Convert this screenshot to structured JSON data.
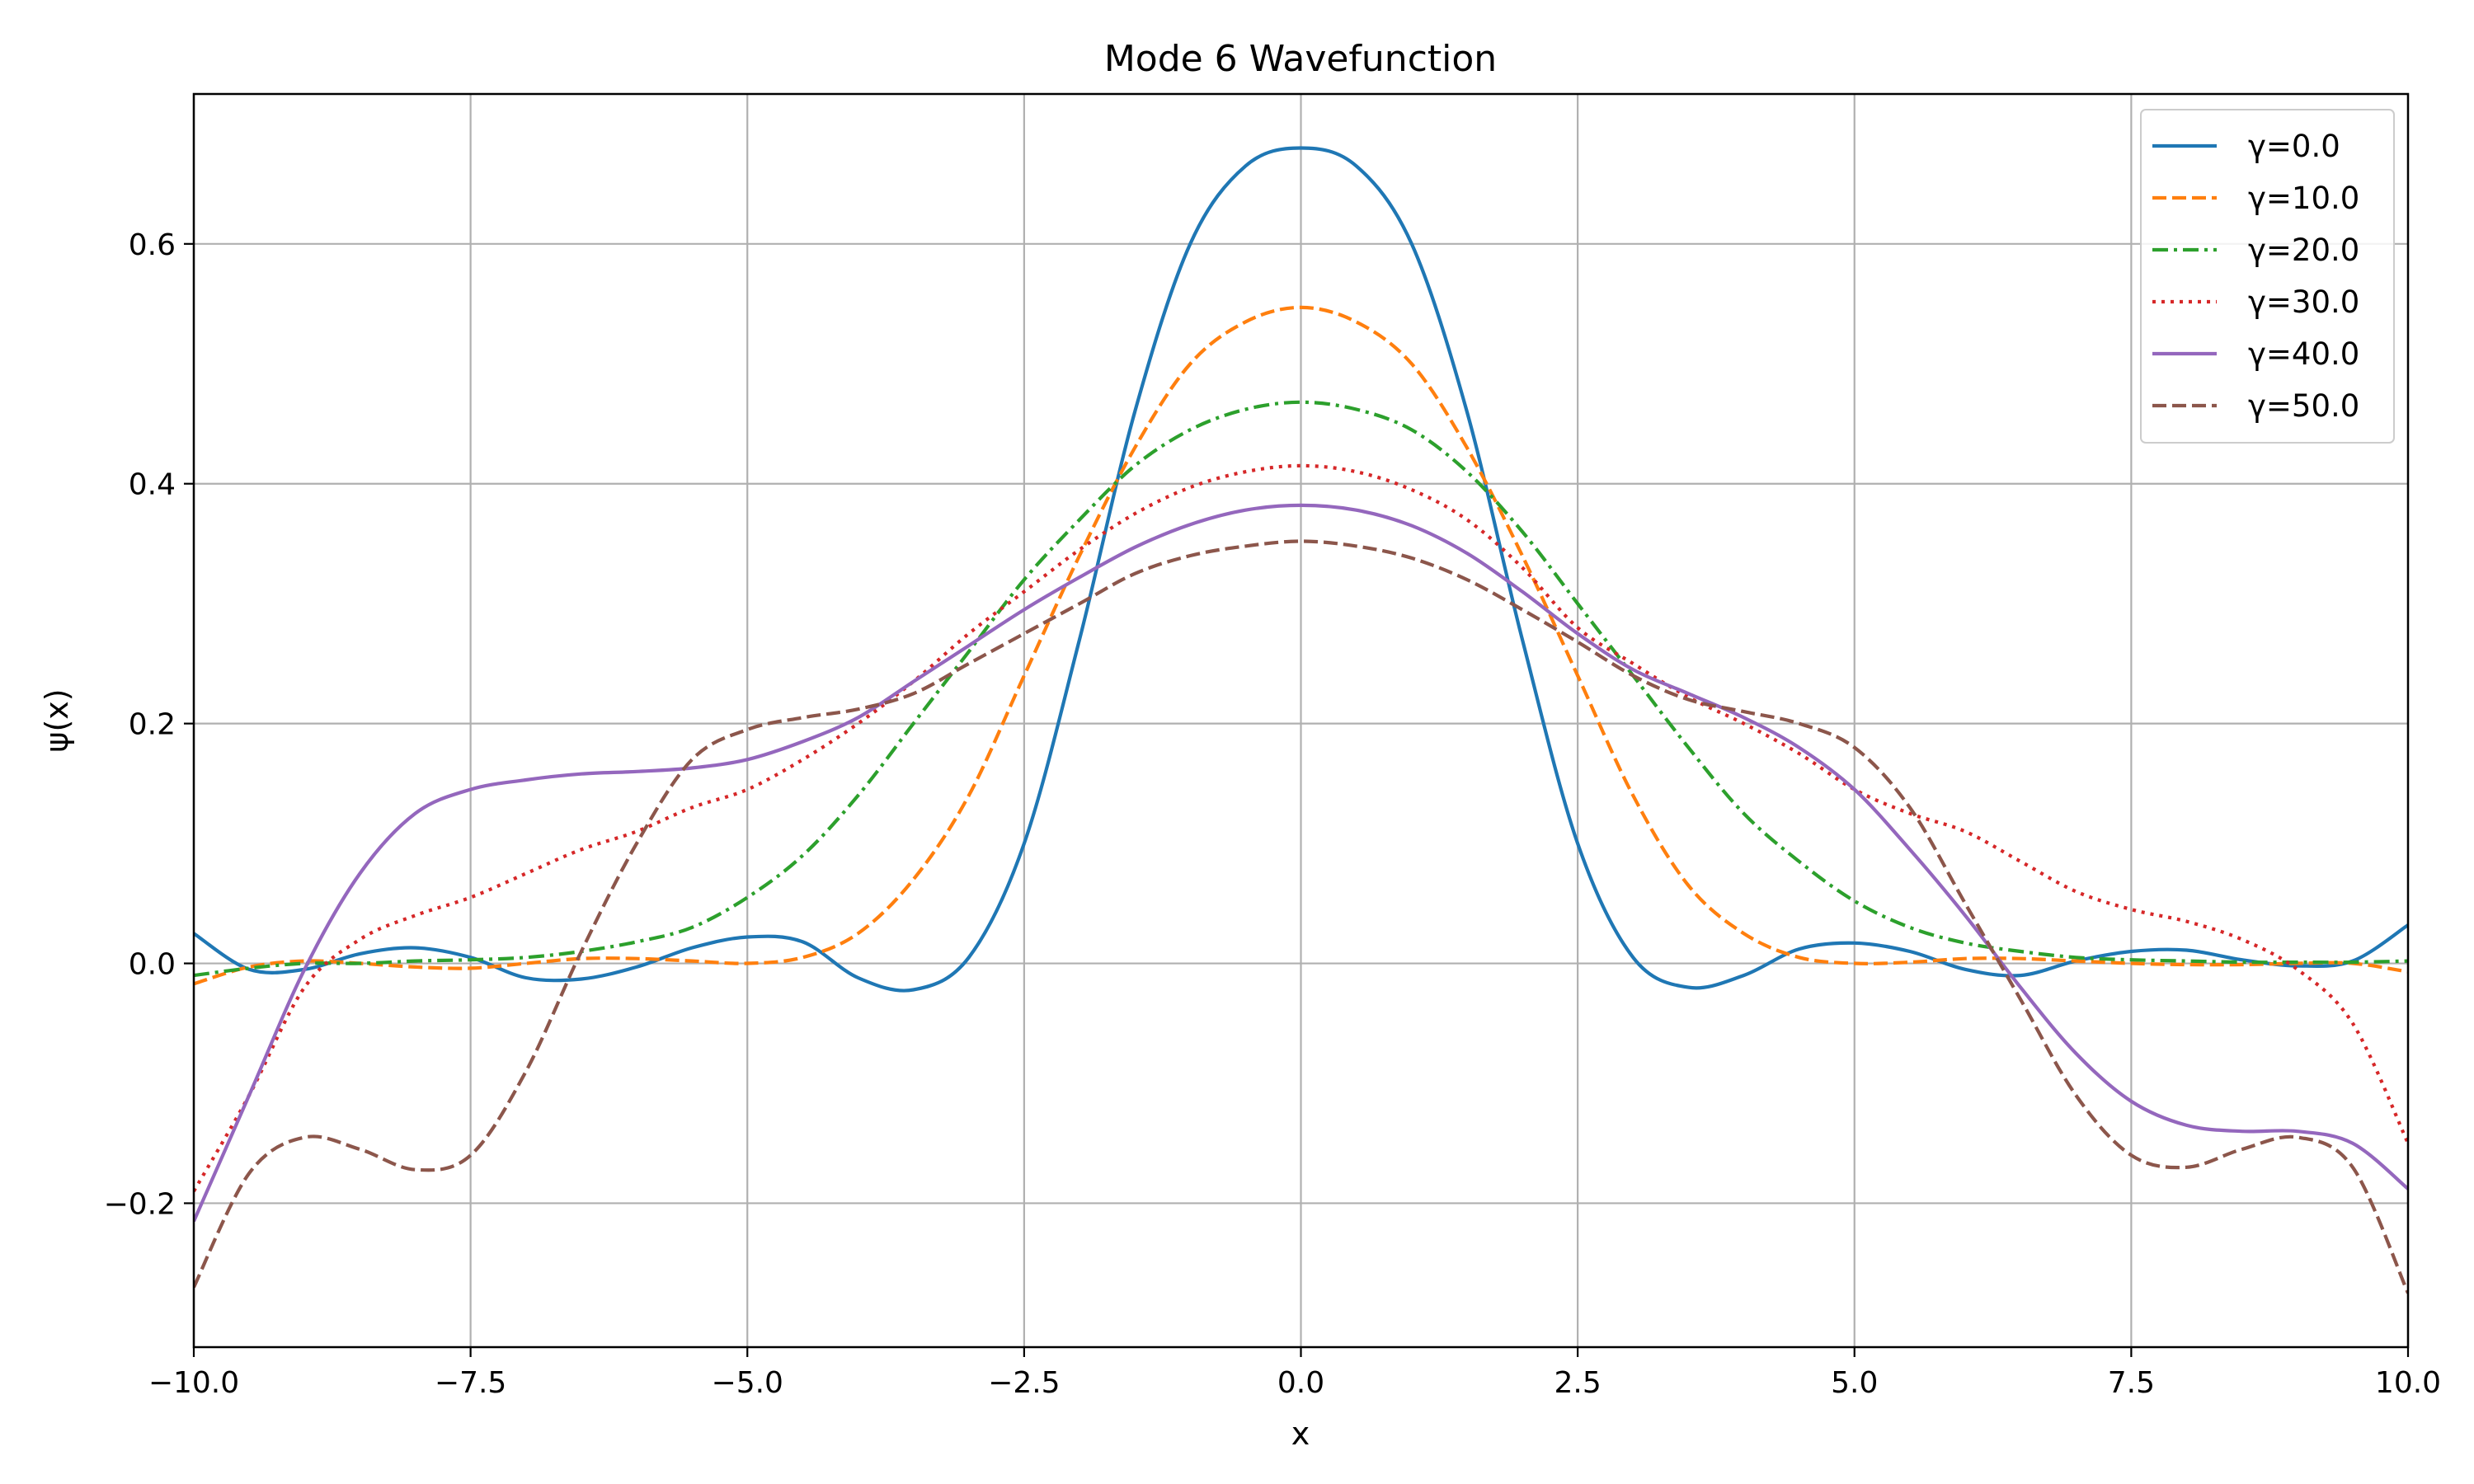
{
  "chart_data": {
    "type": "line",
    "title": "Mode 6 Wavefunction",
    "xlabel": "x",
    "ylabel": "ψ(x)",
    "xlim": [
      -10.0,
      10.0
    ],
    "ylim": [
      -0.32,
      0.725
    ],
    "grid": true,
    "legend_position": "top-right",
    "x_ticks": [
      -10.0,
      -7.5,
      -5.0,
      -2.5,
      0.0,
      2.5,
      5.0,
      7.5,
      10.0
    ],
    "x_tick_labels": [
      "−10.0",
      "−7.5",
      "−5.0",
      "−2.5",
      "0.0",
      "2.5",
      "5.0",
      "7.5",
      "10.0"
    ],
    "y_ticks": [
      -0.2,
      0.0,
      0.2,
      0.4,
      0.6
    ],
    "y_tick_labels": [
      "−0.2",
      "0.0",
      "0.2",
      "0.4",
      "0.6"
    ],
    "x": [
      -10.0,
      -9.5,
      -9.0,
      -8.5,
      -8.0,
      -7.5,
      -7.0,
      -6.5,
      -6.0,
      -5.5,
      -5.0,
      -4.5,
      -4.0,
      -3.5,
      -3.0,
      -2.5,
      -2.0,
      -1.5,
      -1.0,
      -0.5,
      0.0,
      0.5,
      1.0,
      1.5,
      2.0,
      2.5,
      3.0,
      3.5,
      4.0,
      4.5,
      5.0,
      5.5,
      6.0,
      6.5,
      7.0,
      7.5,
      8.0,
      8.5,
      9.0,
      9.5,
      10.0
    ],
    "series": [
      {
        "name": "γ=0.0",
        "color": "#1f77b4",
        "dash": "solid",
        "values": [
          0.025,
          -0.005,
          -0.005,
          0.008,
          0.013,
          0.005,
          -0.012,
          -0.013,
          -0.003,
          0.013,
          0.022,
          0.018,
          -0.012,
          -0.022,
          0.005,
          0.1,
          0.27,
          0.46,
          0.6,
          0.665,
          0.68,
          0.665,
          0.6,
          0.46,
          0.27,
          0.1,
          0.005,
          -0.02,
          -0.01,
          0.012,
          0.017,
          0.01,
          -0.005,
          -0.01,
          0.002,
          0.01,
          0.011,
          0.003,
          -0.002,
          0.002,
          0.032
        ]
      },
      {
        "name": "γ=10.0",
        "color": "#ff7f0e",
        "dash": "dashed",
        "values": [
          -0.017,
          -0.003,
          0.002,
          0.0,
          -0.003,
          -0.004,
          0.0,
          0.004,
          0.004,
          0.002,
          0.0,
          0.005,
          0.025,
          0.07,
          0.14,
          0.24,
          0.34,
          0.43,
          0.5,
          0.535,
          0.547,
          0.535,
          0.5,
          0.43,
          0.34,
          0.24,
          0.14,
          0.065,
          0.025,
          0.005,
          0.0,
          0.001,
          0.004,
          0.004,
          0.002,
          0.0,
          -0.001,
          -0.001,
          0.0,
          0.0,
          -0.007
        ]
      },
      {
        "name": "γ=20.0",
        "color": "#2ca02c",
        "dash": "dashdot",
        "values": [
          -0.01,
          -0.004,
          0.0,
          0.0,
          0.002,
          0.003,
          0.005,
          0.01,
          0.018,
          0.03,
          0.055,
          0.09,
          0.14,
          0.2,
          0.26,
          0.32,
          0.37,
          0.415,
          0.445,
          0.462,
          0.468,
          0.462,
          0.445,
          0.41,
          0.36,
          0.3,
          0.24,
          0.18,
          0.125,
          0.085,
          0.052,
          0.03,
          0.017,
          0.01,
          0.005,
          0.003,
          0.002,
          0.001,
          0.001,
          0.001,
          0.002
        ]
      },
      {
        "name": "γ=30.0",
        "color": "#d62728",
        "dash": "dotted",
        "values": [
          -0.19,
          -0.11,
          -0.02,
          0.02,
          0.04,
          0.055,
          0.075,
          0.095,
          0.11,
          0.13,
          0.145,
          0.17,
          0.2,
          0.235,
          0.275,
          0.31,
          0.345,
          0.375,
          0.397,
          0.41,
          0.415,
          0.41,
          0.395,
          0.37,
          0.33,
          0.28,
          0.25,
          0.222,
          0.2,
          0.175,
          0.145,
          0.125,
          0.11,
          0.085,
          0.06,
          0.045,
          0.035,
          0.02,
          -0.005,
          -0.05,
          -0.15
        ]
      },
      {
        "name": "γ=40.0",
        "color": "#9467bd",
        "dash": "solid",
        "values": [
          -0.215,
          -0.11,
          -0.005,
          0.075,
          0.125,
          0.145,
          0.153,
          0.158,
          0.16,
          0.163,
          0.17,
          0.185,
          0.205,
          0.235,
          0.265,
          0.295,
          0.322,
          0.347,
          0.366,
          0.378,
          0.382,
          0.378,
          0.365,
          0.342,
          0.31,
          0.275,
          0.245,
          0.225,
          0.205,
          0.18,
          0.145,
          0.095,
          0.04,
          -0.02,
          -0.075,
          -0.115,
          -0.135,
          -0.14,
          -0.14,
          -0.15,
          -0.188
        ]
      },
      {
        "name": "γ=50.0",
        "color": "#8c564b",
        "dash": "dashed",
        "values": [
          -0.27,
          -0.175,
          -0.145,
          -0.155,
          -0.172,
          -0.16,
          -0.09,
          0.01,
          0.1,
          0.17,
          0.195,
          0.205,
          0.212,
          0.225,
          0.25,
          0.275,
          0.3,
          0.325,
          0.34,
          0.348,
          0.352,
          0.348,
          0.338,
          0.32,
          0.295,
          0.268,
          0.24,
          0.22,
          0.21,
          0.2,
          0.18,
          0.13,
          0.05,
          -0.03,
          -0.11,
          -0.16,
          -0.17,
          -0.155,
          -0.145,
          -0.17,
          -0.275
        ]
      }
    ]
  }
}
